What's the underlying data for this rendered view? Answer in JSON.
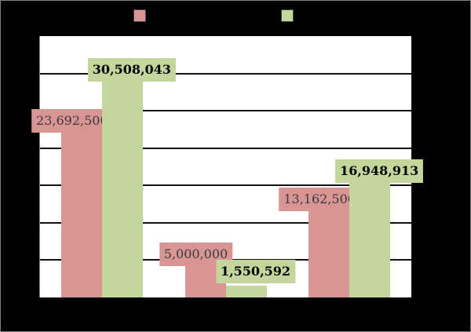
{
  "chart_data": {
    "type": "bar",
    "title": "",
    "xlabel": "",
    "ylabel": "",
    "categories": [
      "",
      "",
      ""
    ],
    "series": [
      {
        "name": "",
        "color": "#d99594",
        "values": [
          23692500,
          5000000,
          13162500
        ],
        "labels": [
          "23,692,500",
          "5,000,000",
          "13,162,500"
        ]
      },
      {
        "name": "",
        "color": "#c3d69b",
        "values": [
          30508043,
          1550592,
          16948913
        ],
        "labels": [
          "30,508,043",
          "1,550,592",
          "16,948,913"
        ]
      }
    ],
    "ylim": [
      0,
      35000000
    ],
    "yticks": [
      0,
      5000000,
      10000000,
      15000000,
      20000000,
      25000000,
      30000000,
      35000000
    ],
    "grid": true,
    "legend_position": "top"
  },
  "legend": {
    "series1": {
      "label": "",
      "color": "#d99594"
    },
    "series2": {
      "label": "",
      "color": "#c3d69b"
    }
  }
}
